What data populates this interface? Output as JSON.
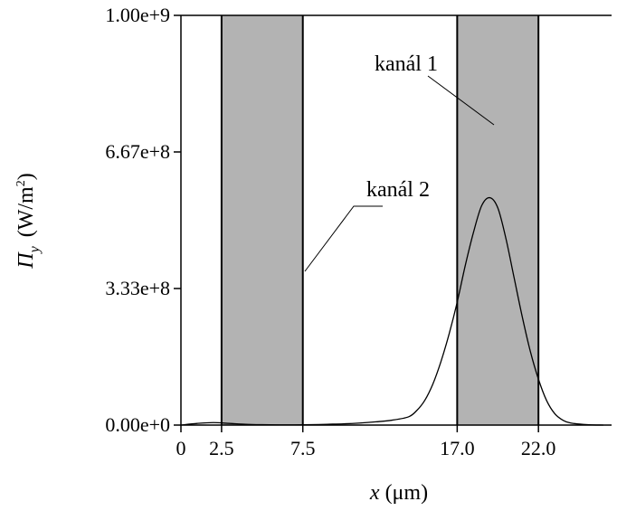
{
  "chart_data": {
    "type": "line",
    "xlabel": {
      "var": "x",
      "unit": " (μm)"
    },
    "ylabel": {
      "var": "Π",
      "sub": "y",
      "unit": "(W/m",
      "unit_sup": "2",
      "unit_end": ")"
    },
    "xlim": [
      0,
      26.5
    ],
    "ylim": [
      0,
      1000000000
    ],
    "x_ticks": [
      {
        "value": 0,
        "label": "0"
      },
      {
        "value": 2.5,
        "label": "2.5"
      },
      {
        "value": 7.5,
        "label": "7.5"
      },
      {
        "value": 17.0,
        "label": "17.0"
      },
      {
        "value": 22.0,
        "label": "22.0"
      }
    ],
    "y_ticks": [
      {
        "value": 0,
        "label": "0.00e+0"
      },
      {
        "value": 333333333,
        "label": "3.33e+8"
      },
      {
        "value": 666666667,
        "label": "6.67e+8"
      },
      {
        "value": 1000000000,
        "label": "1.00e+9"
      }
    ],
    "channels": [
      {
        "label": "kanál 2",
        "x_range": [
          2.5,
          7.5
        ],
        "color": "#b3b3b3"
      },
      {
        "label": "kanál 1",
        "x_range": [
          17.0,
          22.0
        ],
        "color": "#b3b3b3"
      }
    ],
    "series": [
      {
        "x": [
          0,
          1,
          2,
          3,
          4,
          5,
          6,
          7,
          8,
          9,
          10,
          11,
          12,
          13,
          14,
          14.5,
          15,
          15.5,
          16,
          16.5,
          17,
          17.5,
          18,
          18.5,
          19,
          19.5,
          20,
          20.5,
          21,
          21.5,
          22,
          22.5,
          23,
          23.5,
          24,
          25,
          26
        ],
        "y": [
          0,
          4000000,
          6000000,
          4000000,
          2000000,
          1000000,
          500000,
          500000,
          1000000,
          2000000,
          3000000,
          5000000,
          8000000,
          12000000,
          20000000,
          35000000,
          60000000,
          100000000,
          155000000,
          222000000,
          300000000,
          390000000,
          470000000,
          535000000,
          555000000,
          530000000,
          455000000,
          360000000,
          265000000,
          180000000,
          112000000,
          60000000,
          28000000,
          12000000,
          5000000,
          1000000,
          0
        ],
        "color": "#000000"
      }
    ]
  }
}
